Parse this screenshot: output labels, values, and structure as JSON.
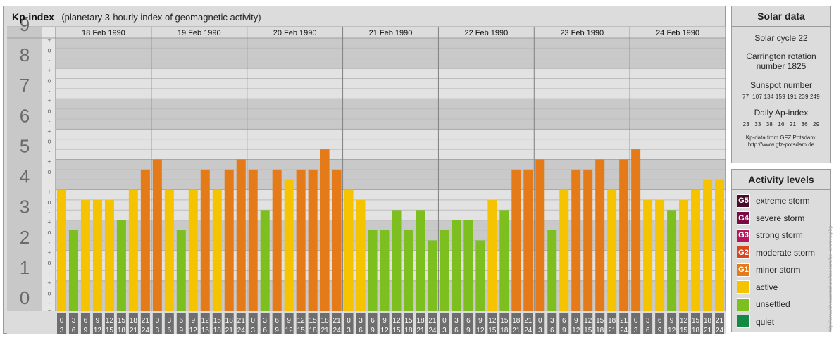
{
  "title": "Kp-index",
  "subtitle": "(planetary 3-hourly index of geomagnetic activity)",
  "chart_data": {
    "type": "bar",
    "ylim": [
      0,
      9
    ],
    "y_tick_labels": [
      "0",
      "1",
      "2",
      "3",
      "4",
      "5",
      "6",
      "7",
      "8",
      "9"
    ],
    "minor_tick_labels": [
      "+",
      "o",
      "-"
    ],
    "days": [
      "18 Feb 1990",
      "19 Feb 1990",
      "20 Feb 1990",
      "21 Feb 1990",
      "22 Feb 1990",
      "23 Feb 1990",
      "24 Feb 1990"
    ],
    "hour_labels": [
      [
        "0",
        "3"
      ],
      [
        "3",
        "6"
      ],
      [
        "6",
        "9"
      ],
      [
        "9",
        "12"
      ],
      [
        "12",
        "15"
      ],
      [
        "15",
        "18"
      ],
      [
        "18",
        "21"
      ],
      [
        "21",
        "24"
      ]
    ],
    "values": [
      4.0,
      2.667,
      3.667,
      3.667,
      3.667,
      3.0,
      4.0,
      4.667,
      5.0,
      4.0,
      2.667,
      4.0,
      4.667,
      4.0,
      4.667,
      5.0,
      4.667,
      3.333,
      4.667,
      4.333,
      4.667,
      4.667,
      5.333,
      4.667,
      4.0,
      3.667,
      2.667,
      2.667,
      3.333,
      2.667,
      3.333,
      2.333,
      2.667,
      3.0,
      3.0,
      2.333,
      3.667,
      3.333,
      4.667,
      4.667,
      5.0,
      2.667,
      4.0,
      4.667,
      4.667,
      5.0,
      4.0,
      5.0,
      5.333,
      3.667,
      3.667,
      3.333,
      3.667,
      4.0,
      4.333,
      4.333
    ],
    "colors": {
      "unsettled": "#7cbf1f",
      "active": "#f6c300",
      "minor_storm": "#e57a18",
      "quiet": "#138a44"
    }
  },
  "solar": {
    "header": "Solar data",
    "cycle": "Solar cycle 22",
    "carrington_1": "Carrington rotation",
    "carrington_2": "number 1825",
    "sunspot_title": "Sunspot number",
    "sunspot_values": "77  107 134 159 191 239 249",
    "ap_title": "Daily Ap-index",
    "ap_values": "23   33   38   16   21   36   29",
    "source_1": "Kp-data from GFZ Potsdam:",
    "source_2": "http://www.gfz-potsdam.de"
  },
  "levels": {
    "header": "Activity levels",
    "items": [
      {
        "code": "G5",
        "label": "extreme storm",
        "color": "#4a0a2a"
      },
      {
        "code": "G4",
        "label": "severe storm",
        "color": "#7b0a44"
      },
      {
        "code": "G3",
        "label": "strong storm",
        "color": "#b5175c"
      },
      {
        "code": "G2",
        "label": "moderate storm",
        "color": "#d9461d"
      },
      {
        "code": "G1",
        "label": "minor storm",
        "color": "#e57a18"
      },
      {
        "code": "",
        "label": "active",
        "color": "#f6c300"
      },
      {
        "code": "",
        "label": "unsettled",
        "color": "#7cbf1f"
      },
      {
        "code": "",
        "label": "quiet",
        "color": "#138a44"
      }
    ]
  },
  "watermark": "http://www.theusersel.de/saurora/kp_archive.php"
}
